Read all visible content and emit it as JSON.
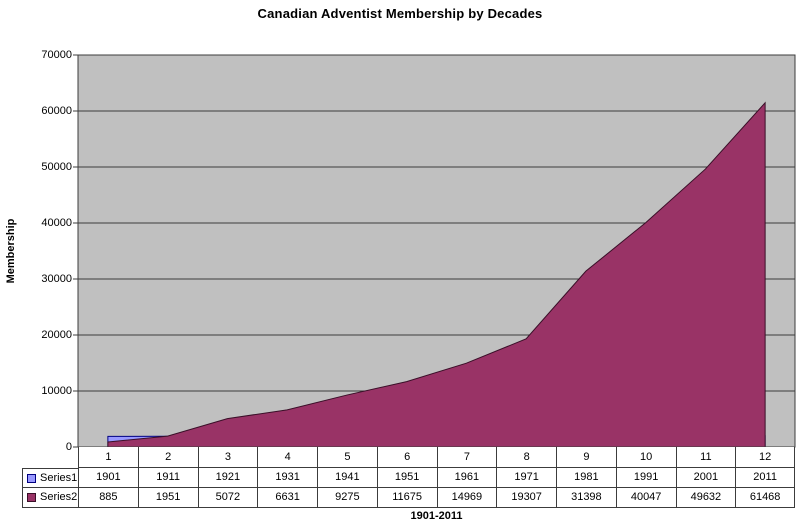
{
  "chart_data": {
    "type": "area",
    "title": "Canadian Adventist Membership by Decades",
    "categories": [
      "1",
      "2",
      "3",
      "4",
      "5",
      "6",
      "7",
      "8",
      "9",
      "10",
      "11",
      "12"
    ],
    "series": [
      {
        "name": "Series1",
        "values": [
          1901,
          1911,
          1921,
          1931,
          1941,
          1951,
          1961,
          1971,
          1981,
          1991,
          2001,
          2011
        ],
        "fill": "#9999FF",
        "edge": "#000080"
      },
      {
        "name": "Series2",
        "values": [
          885,
          1951,
          5072,
          6631,
          9275,
          11675,
          14969,
          19307,
          31398,
          40047,
          49632,
          61468
        ],
        "fill": "#993366",
        "edge": "#3A0F28"
      }
    ],
    "xlabel": "1901-2011",
    "ylabel": "Membership",
    "ylim": [
      0,
      70000
    ],
    "y_ticks": [
      0,
      10000,
      20000,
      30000,
      40000,
      50000,
      60000,
      70000
    ],
    "grid": true,
    "legend_position": "table-left",
    "plot_bg": "#C0C0C0",
    "gridline_color": "#3c3c3c",
    "axis_color": "#3c3c3c"
  }
}
